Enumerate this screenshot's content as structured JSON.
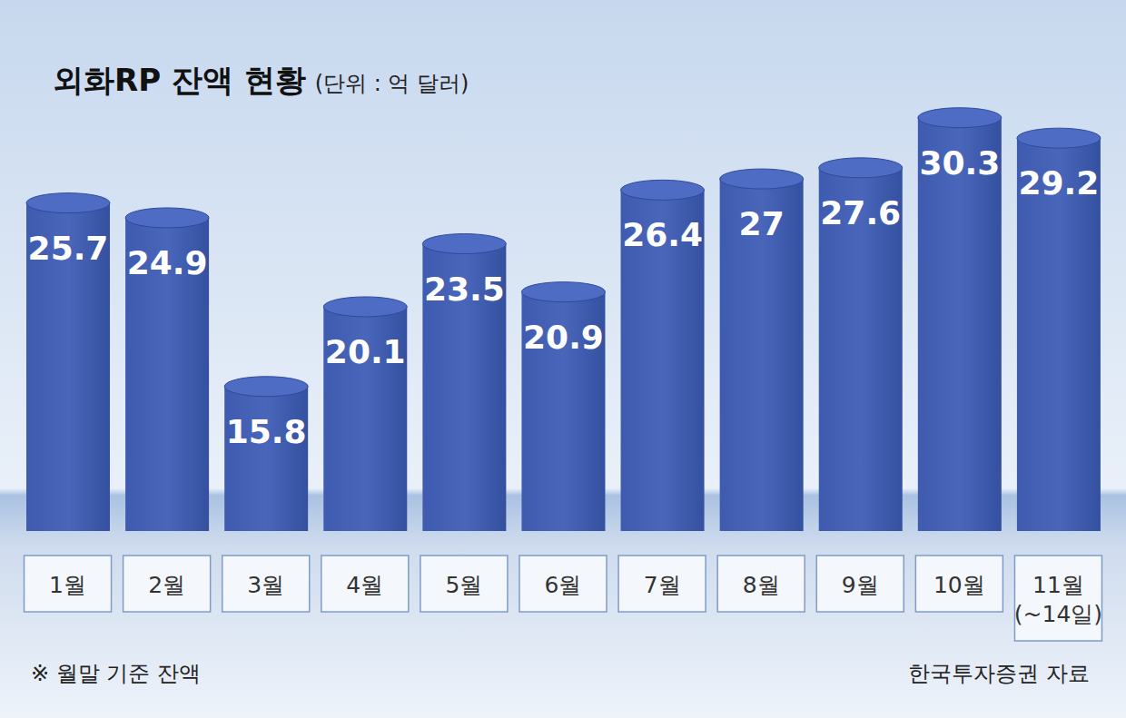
{
  "chart_data": {
    "type": "bar",
    "title": "외화RP 잔액 현황",
    "subtitle": "(단위 : 억 달러)",
    "categories": [
      "1월",
      "2월",
      "3월",
      "4월",
      "5월",
      "6월",
      "7월",
      "8월",
      "9월",
      "10월",
      "11월 (~14일)"
    ],
    "values": [
      25.7,
      24.9,
      15.8,
      20.1,
      23.5,
      20.9,
      26.4,
      27,
      27.6,
      30.3,
      29.2
    ],
    "color": "#3f5bb0",
    "ylim": [
      8,
      32
    ],
    "data_labels": true,
    "tick_labels": "x",
    "note": "※ 월말 기준 잔액",
    "source": "한국투자증권 자료"
  }
}
